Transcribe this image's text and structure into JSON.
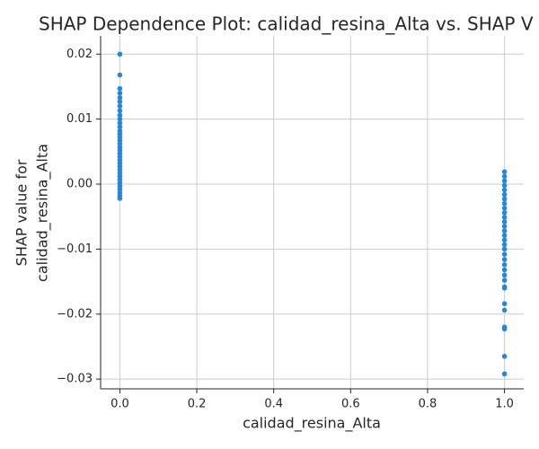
{
  "chart_data": {
    "type": "scatter",
    "title": "SHAP Dependence Plot: calidad_resina_Alta vs. SHAP V",
    "xlabel": "calidad_resina_Alta",
    "ylabel": [
      "SHAP value for",
      "calidad_resina_Alta"
    ],
    "color": "#1e88e5",
    "grid": true,
    "xlim": [
      -0.05,
      1.05
    ],
    "ylim": [
      -0.0315,
      0.0228
    ],
    "xticks": [
      {
        "value": 0,
        "label": "0.0"
      },
      {
        "value": 0.2,
        "label": "0.2"
      },
      {
        "value": 0.4,
        "label": "0.4"
      },
      {
        "value": 0.6,
        "label": "0.6"
      },
      {
        "value": 0.8,
        "label": "0.8"
      },
      {
        "value": 1,
        "label": "1.0"
      }
    ],
    "yticks": [
      {
        "value": -0.03,
        "label": "−0.03"
      },
      {
        "value": -0.02,
        "label": "−0.02"
      },
      {
        "value": -0.01,
        "label": "−0.01"
      },
      {
        "value": 0,
        "label": "0.00"
      },
      {
        "value": 0.01,
        "label": "0.01"
      },
      {
        "value": 0.02,
        "label": "0.02"
      }
    ],
    "x": [
      0,
      0,
      0,
      0,
      0,
      0,
      0,
      0,
      0,
      0,
      0,
      0,
      0,
      0,
      0,
      0,
      0,
      0,
      0,
      0,
      0,
      0,
      0,
      0,
      0,
      0,
      0,
      0,
      0,
      0,
      0,
      0,
      0,
      0,
      1,
      1,
      1,
      1,
      1,
      1,
      1,
      1,
      1,
      1,
      1,
      1,
      1,
      1,
      1,
      1,
      1,
      1,
      1,
      1,
      1,
      1,
      1,
      1,
      1,
      1,
      1,
      1,
      1,
      1,
      1,
      1
    ],
    "values": [
      0.02,
      0.0168,
      0.0147,
      0.014,
      0.0133,
      0.0127,
      0.012,
      0.0113,
      0.0106,
      0.01,
      0.0094,
      0.0088,
      0.0082,
      0.0077,
      0.0072,
      0.0067,
      0.0062,
      0.0057,
      0.0052,
      0.0047,
      0.0042,
      0.0037,
      0.0032,
      0.0027,
      0.0022,
      0.0017,
      0.0012,
      0.0007,
      0.0002,
      -0.0003,
      -0.0008,
      -0.0013,
      -0.0018,
      -0.0022,
      0.0019,
      0.0012,
      0.0005,
      -0.0002,
      -0.0009,
      -0.0016,
      -0.0023,
      -0.003,
      -0.0037,
      -0.0044,
      -0.0051,
      -0.0058,
      -0.0065,
      -0.0072,
      -0.0079,
      -0.0086,
      -0.0093,
      -0.01,
      -0.0108,
      -0.0116,
      -0.0124,
      -0.0132,
      -0.014,
      -0.0148,
      -0.0158,
      -0.016,
      -0.0184,
      -0.0194,
      -0.022,
      -0.0223,
      -0.0265,
      -0.0292
    ]
  }
}
